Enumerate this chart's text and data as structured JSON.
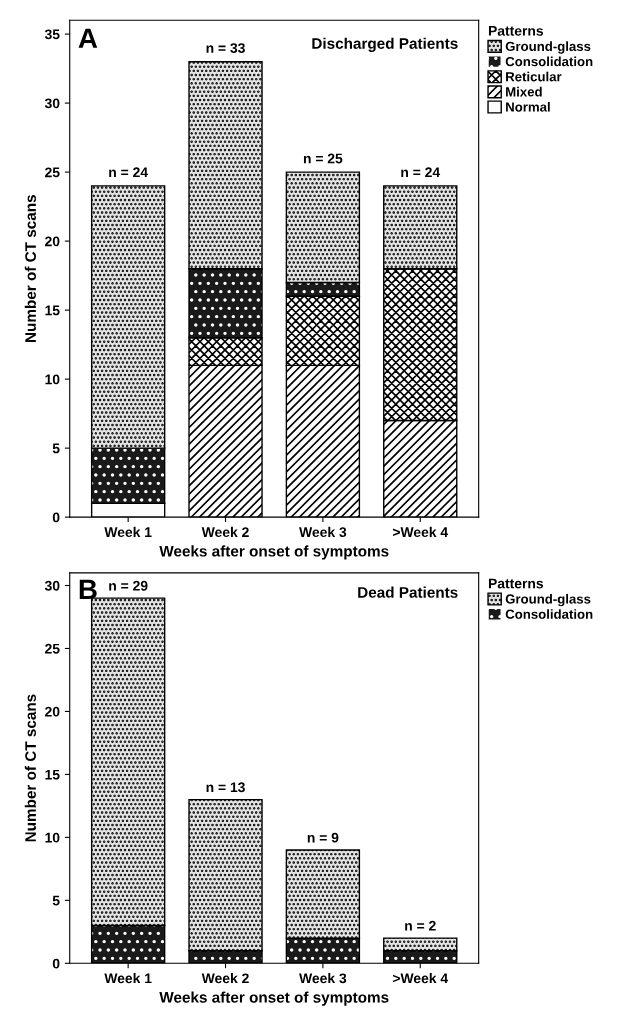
{
  "chart_data": [
    {
      "type": "bar",
      "title": "A",
      "subtitle": "Discharged Patients",
      "xlabel": "Weeks after onset of symptoms",
      "ylabel": "Number of CT scans",
      "legend_title": "Patterns",
      "legend": "right",
      "stacked": true,
      "grid": false,
      "categories": [
        "Week 1",
        "Week 2",
        "Week 3",
        ">Week 4"
      ],
      "series": [
        {
          "name": "Normal",
          "color": "#fcfcfc",
          "values": [
            1,
            0,
            0,
            0
          ]
        },
        {
          "name": "Mixed",
          "color": "#ffffff",
          "values": [
            0,
            11,
            11,
            7
          ]
        },
        {
          "name": "Reticular",
          "color": "#ffffff",
          "values": [
            0,
            2,
            5,
            11
          ]
        },
        {
          "name": "Consolidation",
          "color": "#1a1a1a",
          "values": [
            4,
            5,
            1,
            0
          ]
        },
        {
          "name": "Ground-glass",
          "color": "#e3e3e3",
          "values": [
            19,
            15,
            8,
            6
          ]
        }
      ],
      "totals": [
        "n = 24",
        "n = 33",
        "n = 25",
        "n = 24"
      ],
      "ylim": [
        0,
        36
      ],
      "yticks": [
        0,
        5,
        10,
        15,
        20,
        25,
        30,
        35
      ]
    },
    {
      "type": "bar",
      "title": "B",
      "subtitle": "Dead Patients",
      "xlabel": "Weeks after onset of symptoms",
      "ylabel": "Number of CT scans",
      "legend_title": "Patterns",
      "legend": "right",
      "stacked": true,
      "grid": false,
      "categories": [
        "Week 1",
        "Week 2",
        "Week 3",
        ">Week 4"
      ],
      "series": [
        {
          "name": "Consolidation",
          "color": "#1a1a1a",
          "values": [
            3,
            1,
            2,
            1
          ]
        },
        {
          "name": "Ground-glass",
          "color": "#e3e3e3",
          "values": [
            26,
            12,
            7,
            1
          ]
        }
      ],
      "totals": [
        "n = 29",
        "n = 13",
        "n = 9",
        "n = 2"
      ],
      "ylim": [
        0,
        31
      ],
      "yticks": [
        0,
        5,
        10,
        15,
        20,
        25,
        30
      ]
    }
  ]
}
